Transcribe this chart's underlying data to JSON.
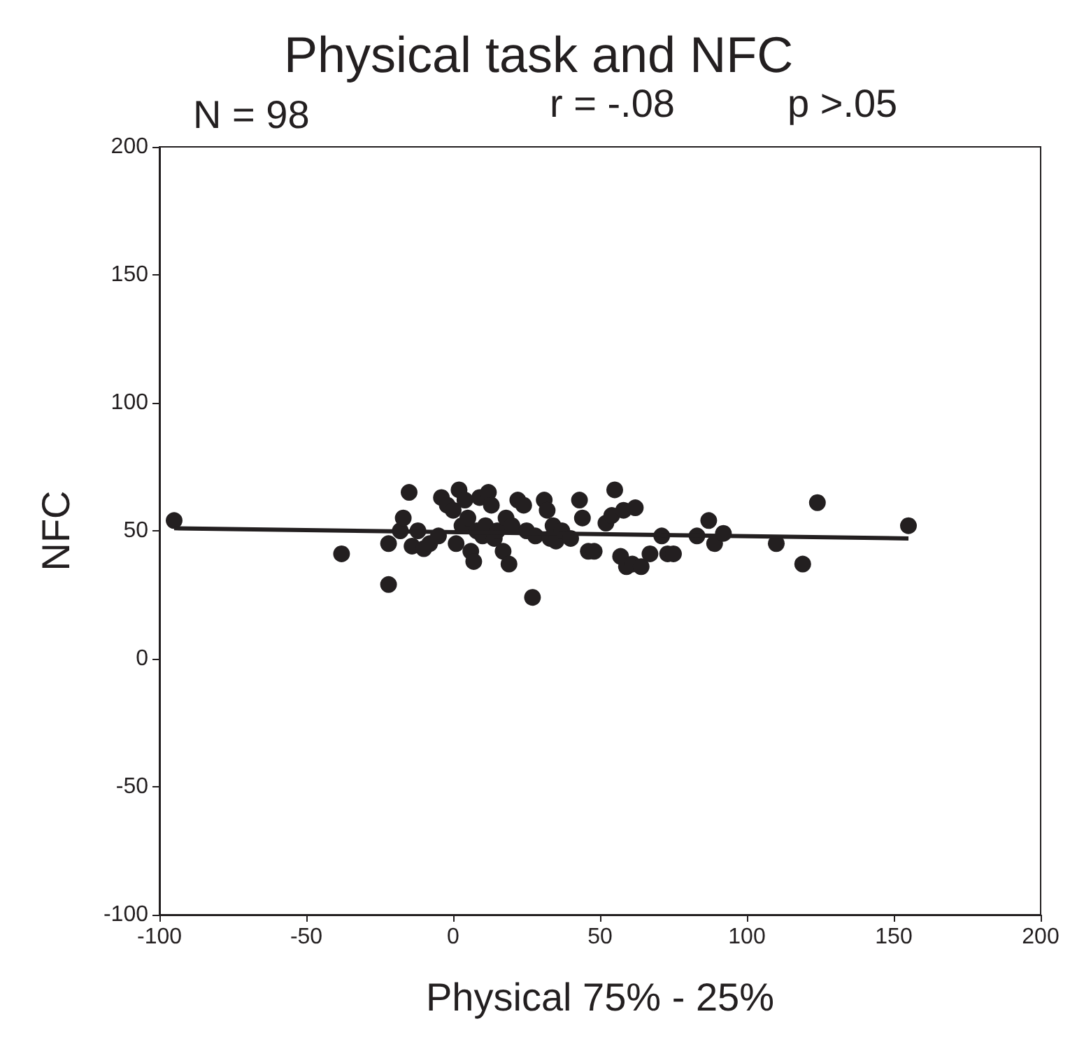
{
  "chart_data": {
    "type": "scatter",
    "title": "Physical task and NFC",
    "xlabel": "Physical 75% - 25%",
    "ylabel": "NFC",
    "annotations": [
      "N = 98",
      "r = -.08",
      "p >.05"
    ],
    "xlim": [
      -100,
      200
    ],
    "xticks": [
      -100,
      -50,
      0,
      50,
      100,
      150,
      200
    ],
    "ylim": [
      -100,
      200
    ],
    "yticks": [
      -100,
      -50,
      0,
      50,
      100,
      150,
      200
    ],
    "grid": false,
    "marker": "circle",
    "series": [
      {
        "color": "#231f20",
        "x": [
          -95,
          -38,
          -22,
          -22,
          -18,
          -17,
          -15,
          -14,
          -12,
          -10,
          -8,
          -5,
          -4,
          -2,
          0,
          1,
          2,
          3,
          4,
          5,
          6,
          7,
          8,
          9,
          10,
          11,
          12,
          13,
          14,
          15,
          17,
          18,
          19,
          20,
          22,
          24,
          25,
          27,
          28,
          31,
          32,
          33,
          34,
          35,
          37,
          40,
          43,
          44,
          46,
          48,
          52,
          54,
          55,
          57,
          58,
          59,
          61,
          62,
          64,
          67,
          71,
          73,
          75,
          83,
          87,
          89,
          92,
          110,
          119,
          124,
          155
        ],
        "values": [
          54,
          41,
          29,
          45,
          50,
          55,
          65,
          44,
          50,
          43,
          45,
          48,
          63,
          60,
          58,
          45,
          66,
          52,
          62,
          55,
          42,
          38,
          50,
          63,
          48,
          52,
          65,
          60,
          47,
          50,
          42,
          55,
          37,
          52,
          62,
          60,
          50,
          24,
          48,
          62,
          58,
          47,
          52,
          46,
          50,
          47,
          62,
          55,
          42,
          42,
          53,
          56,
          66,
          40,
          58,
          36,
          37,
          59,
          36,
          41,
          48,
          41,
          41,
          48,
          54,
          45,
          49,
          45,
          37,
          61,
          52
        ]
      },
      {
        "type": "line",
        "color": "#231f20",
        "marker": "none",
        "x": [
          -95,
          155
        ],
        "values": [
          51,
          47
        ]
      }
    ]
  }
}
